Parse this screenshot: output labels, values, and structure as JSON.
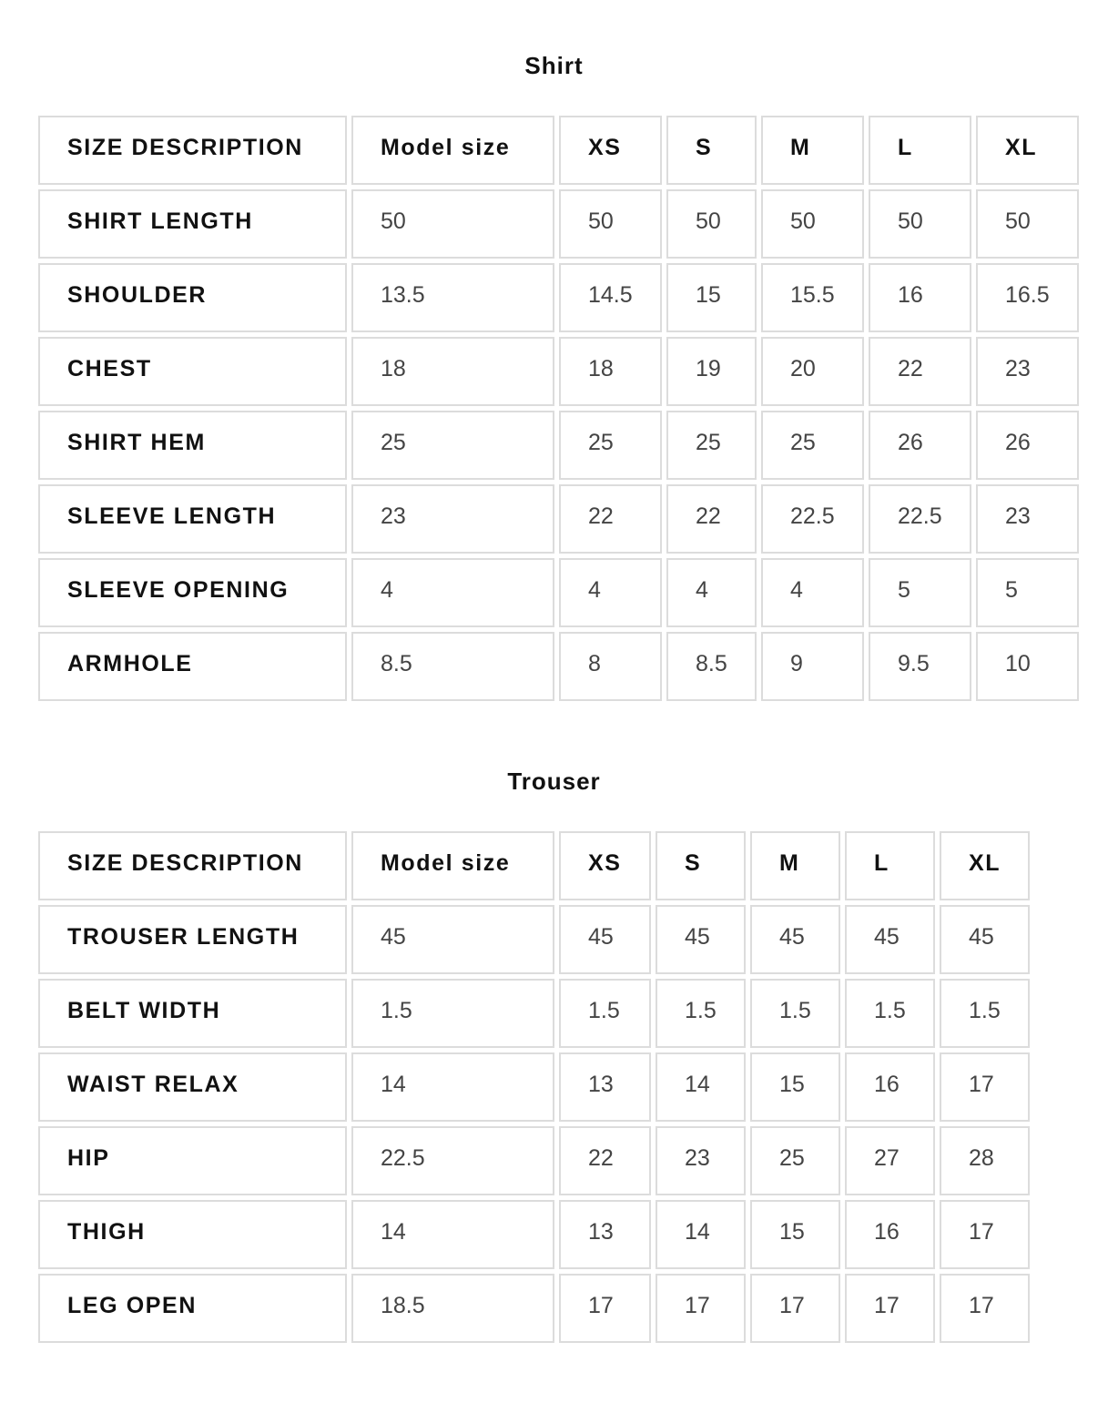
{
  "tables": [
    {
      "title": "Shirt",
      "header": [
        "SIZE DESCRIPTION",
        "Model size",
        "XS",
        "S",
        "M",
        "L",
        "XL"
      ],
      "rows": [
        [
          "SHIRT LENGTH",
          "50",
          "50",
          "50",
          "50",
          "50",
          "50"
        ],
        [
          "SHOULDER",
          "13.5",
          "14.5",
          "15",
          "15.5",
          "16",
          "16.5"
        ],
        [
          "CHEST",
          "18",
          "18",
          "19",
          "20",
          "22",
          "23"
        ],
        [
          "SHIRT HEM",
          "25",
          "25",
          "25",
          "25",
          "26",
          "26"
        ],
        [
          "SLEEVE LENGTH",
          "23",
          "22",
          "22",
          "22.5",
          "22.5",
          "23"
        ],
        [
          "SLEEVE OPENING",
          "4",
          "4",
          "4",
          "4",
          "5",
          "5"
        ],
        [
          "ARMHOLE",
          "8.5",
          "8",
          "8.5",
          "9",
          "9.5",
          "10"
        ]
      ]
    },
    {
      "title": "Trouser",
      "header": [
        "SIZE DESCRIPTION",
        "Model size",
        "XS",
        "S",
        "M",
        "L",
        "XL"
      ],
      "rows": [
        [
          "TROUSER LENGTH",
          "45",
          "45",
          "45",
          "45",
          "45",
          "45"
        ],
        [
          "BELT WIDTH",
          "1.5",
          "1.5",
          "1.5",
          "1.5",
          "1.5",
          "1.5"
        ],
        [
          "WAIST RELAX",
          "14",
          "13",
          "14",
          "15",
          "16",
          "17"
        ],
        [
          "HIP",
          "22.5",
          "22",
          "23",
          "25",
          "27",
          "28"
        ],
        [
          "THIGH",
          "14",
          "13",
          "14",
          "15",
          "16",
          "17"
        ],
        [
          "LEG OPEN",
          "18.5",
          "17",
          "17",
          "17",
          "17",
          "17"
        ]
      ]
    }
  ]
}
